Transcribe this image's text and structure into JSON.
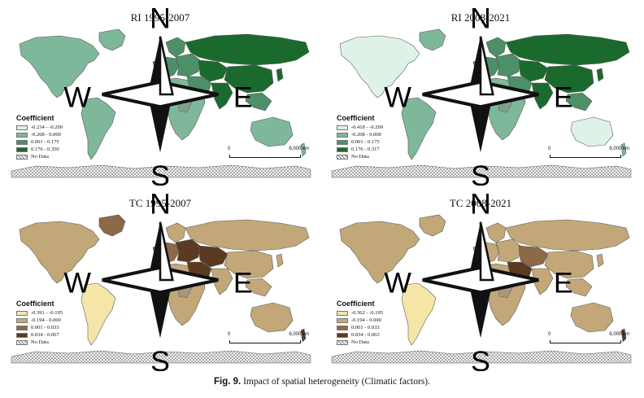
{
  "compass": {
    "n": "N",
    "s": "S",
    "e": "E",
    "w": "W"
  },
  "colors": {
    "ri": [
      "#dff2e8",
      "#7fb79a",
      "#4d8f68",
      "#1a6a2e"
    ],
    "tc": [
      "#f5e6a8",
      "#c2a878",
      "#8c6a48",
      "#5c3a22"
    ],
    "nodata": "#ffffff",
    "border": "#5a5a5a"
  },
  "panels": [
    {
      "id": "ri1",
      "title": "RI 1995-2007",
      "legend_title": "Coefficient",
      "legend": [
        "-0.234 - -0.209",
        "-0.208 - 0.000",
        "0.001 - 0.175",
        "0.176 - 0.350"
      ],
      "nodata_label": "No Data",
      "scale": {
        "start": "0",
        "end": "6,000 km"
      },
      "regions": {
        "north_america": 1,
        "greenland": 1,
        "south_america": 1,
        "africa": 1,
        "europe_west": 2,
        "scandinavia": 2,
        "eastern_europe": 2,
        "russia": 3,
        "central_asia": 3,
        "middle_east": 2,
        "china": 3,
        "india": 3,
        "southeast_asia": 2,
        "japan": 3,
        "australia": 1,
        "new_zealand": 1
      }
    },
    {
      "id": "ri2",
      "title": "RI 2008-2021",
      "legend_title": "Coefficient",
      "legend": [
        "-0.418 - -0.209",
        "-0.208 - 0.000",
        "0.001 - 0.175",
        "0.176 - 0.317"
      ],
      "nodata_label": "No Data",
      "scale": {
        "start": "0",
        "end": "6,000 km"
      },
      "regions": {
        "north_america": 0,
        "greenland": 1,
        "south_america": 1,
        "africa": 1,
        "europe_west": 2,
        "scandinavia": 2,
        "eastern_europe": 2,
        "russia": 3,
        "central_asia": 3,
        "middle_east": 2,
        "china": 3,
        "india": 3,
        "southeast_asia": 2,
        "japan": 3,
        "australia": 0,
        "new_zealand": 1
      }
    },
    {
      "id": "tc1",
      "title": "TC 1995-2007",
      "legend_title": "Coefficient",
      "legend": [
        "-0.391 - -0.195",
        "-0.194 - 0.000",
        "0.001 - 0.033",
        "0.034 - 0.067"
      ],
      "nodata_label": "No Data",
      "scale": {
        "start": "0",
        "end": "6,000 km"
      },
      "regions": {
        "north_america": 1,
        "greenland": 2,
        "south_america": 0,
        "africa": 1,
        "europe_west": 2,
        "scandinavia": 1,
        "eastern_europe": 3,
        "russia": 1,
        "central_asia": 3,
        "middle_east": 3,
        "china": 1,
        "india": 1,
        "southeast_asia": 1,
        "japan": 1,
        "australia": 1,
        "new_zealand": 3
      }
    },
    {
      "id": "tc2",
      "title": "TC 2008-2021",
      "legend_title": "Coefficient",
      "legend": [
        "-0.362 - -0.195",
        "-0.194 - 0.000",
        "0.001 - 0.033",
        "0.034 - 0.063"
      ],
      "nodata_label": "No Data",
      "scale": {
        "start": "0",
        "end": "6,000 km"
      },
      "regions": {
        "north_america": 1,
        "greenland": 1,
        "south_america": 0,
        "africa": 1,
        "europe_west": 1,
        "scandinavia": 1,
        "eastern_europe": 1,
        "russia": 1,
        "central_asia": 2,
        "middle_east": 3,
        "china": 1,
        "india": 1,
        "southeast_asia": 1,
        "japan": 1,
        "australia": 1,
        "new_zealand": 3
      }
    }
  ],
  "caption": {
    "label": "Fig. 9.",
    "text": "Impact of spatial heterogeneity (Climatic factors)."
  }
}
